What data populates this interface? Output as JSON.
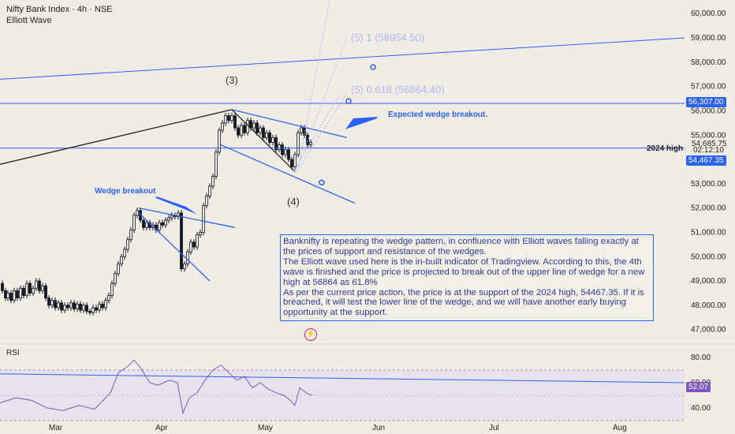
{
  "header": {
    "title": "Nifty Bank Index · 4h · NSE",
    "indicator": "Elliott Wave"
  },
  "annotations": {
    "wave3": "(3)",
    "wave4": "(4)",
    "target1": "(5) 1 (58954.50)",
    "target2": "(5) 0.618 (56864.40)",
    "expected": "Expected wedge breakout.",
    "wedge": "Wedge breakout",
    "high2024": "2024 high"
  },
  "note": {
    "line1": "Banknifty is repeating the wedge pattern, in confluence with Elliott waves falling exactly at the prices of support and resistance of the wedges.",
    "line2": "The Elliott wave used here is the in-built indicator of Tradingview. According to this, the 4th wave is finished and the price is projected to break out of the upper line of wedge for a new high at 56864 as 61.8%",
    "line3": "As per the current price action, the price is at the support of the 2024 high, 54467.35. If it is breached, it will test the lower line of the wedge, and we will have another early buying opportunity at the support."
  },
  "price_tags": {
    "level": "56,307.00",
    "last": "54,685.75",
    "countdown": "02:12:10",
    "support": "54,467.35"
  },
  "rsi": {
    "label": "RSI",
    "value": "52.07"
  },
  "colors": {
    "bg": "#f1ede4",
    "blue": "#2962ff",
    "candle": "#131722",
    "rsi_line": "#7e57c2",
    "rsi_band": "#e4ddef"
  },
  "chart_data": {
    "type": "candlestick",
    "title": "Nifty Bank Index · 4h · NSE",
    "y_ticks": [
      "60,000.00",
      "59,000.00",
      "58,000.00",
      "57,000.00",
      "56,000.00",
      "55,000.00",
      "53,000.00",
      "52,000.00",
      "51,000.00",
      "50,000.00",
      "49,000.00",
      "48,000.00",
      "47,000.00"
    ],
    "x_ticks": [
      "Mar",
      "Apr",
      "May",
      "Jun",
      "Jul",
      "Aug"
    ],
    "ylim": [
      46600,
      60300
    ],
    "rsi_ticks": [
      "80.00",
      "60.00",
      "40.00"
    ],
    "close_path": [
      {
        "x": 0,
        "y": 48900
      },
      {
        "x": 3,
        "y": 48600
      },
      {
        "x": 7,
        "y": 48300
      },
      {
        "x": 10,
        "y": 48500
      },
      {
        "x": 14,
        "y": 48200
      },
      {
        "x": 18,
        "y": 48600
      },
      {
        "x": 22,
        "y": 48300
      },
      {
        "x": 26,
        "y": 48700
      },
      {
        "x": 30,
        "y": 48400
      },
      {
        "x": 34,
        "y": 48900
      },
      {
        "x": 38,
        "y": 48500
      },
      {
        "x": 42,
        "y": 48700
      },
      {
        "x": 46,
        "y": 49000
      },
      {
        "x": 50,
        "y": 48600
      },
      {
        "x": 54,
        "y": 48800
      },
      {
        "x": 58,
        "y": 48300
      },
      {
        "x": 62,
        "y": 48000
      },
      {
        "x": 66,
        "y": 48200
      },
      {
        "x": 70,
        "y": 47900
      },
      {
        "x": 74,
        "y": 48100
      },
      {
        "x": 78,
        "y": 47800
      },
      {
        "x": 82,
        "y": 48000
      },
      {
        "x": 86,
        "y": 47900
      },
      {
        "x": 90,
        "y": 48100
      },
      {
        "x": 94,
        "y": 47850
      },
      {
        "x": 98,
        "y": 48050
      },
      {
        "x": 102,
        "y": 47800
      },
      {
        "x": 106,
        "y": 48000
      },
      {
        "x": 110,
        "y": 47750
      },
      {
        "x": 114,
        "y": 47700
      },
      {
        "x": 118,
        "y": 47900
      },
      {
        "x": 122,
        "y": 47800
      },
      {
        "x": 126,
        "y": 48050
      },
      {
        "x": 130,
        "y": 47900
      },
      {
        "x": 134,
        "y": 48200
      },
      {
        "x": 138,
        "y": 48400
      },
      {
        "x": 142,
        "y": 48900
      },
      {
        "x": 146,
        "y": 49300
      },
      {
        "x": 150,
        "y": 49700
      },
      {
        "x": 154,
        "y": 50000
      },
      {
        "x": 158,
        "y": 50300
      },
      {
        "x": 162,
        "y": 50700
      },
      {
        "x": 166,
        "y": 51100
      },
      {
        "x": 170,
        "y": 51700
      },
      {
        "x": 174,
        "y": 51900
      },
      {
        "x": 178,
        "y": 51500
      },
      {
        "x": 182,
        "y": 51200
      },
      {
        "x": 186,
        "y": 51400
      },
      {
        "x": 190,
        "y": 51200
      },
      {
        "x": 194,
        "y": 51300
      },
      {
        "x": 198,
        "y": 51100
      },
      {
        "x": 202,
        "y": 51400
      },
      {
        "x": 206,
        "y": 51300
      },
      {
        "x": 210,
        "y": 51500
      },
      {
        "x": 214,
        "y": 51600
      },
      {
        "x": 218,
        "y": 51700
      },
      {
        "x": 222,
        "y": 51650
      },
      {
        "x": 226,
        "y": 51800
      },
      {
        "x": 230,
        "y": 49500
      },
      {
        "x": 234,
        "y": 49700
      },
      {
        "x": 238,
        "y": 50200
      },
      {
        "x": 242,
        "y": 50600
      },
      {
        "x": 246,
        "y": 50400
      },
      {
        "x": 250,
        "y": 50900
      },
      {
        "x": 254,
        "y": 51000
      },
      {
        "x": 258,
        "y": 52100
      },
      {
        "x": 262,
        "y": 52500
      },
      {
        "x": 266,
        "y": 52900
      },
      {
        "x": 270,
        "y": 53300
      },
      {
        "x": 274,
        "y": 54300
      },
      {
        "x": 278,
        "y": 55200
      },
      {
        "x": 282,
        "y": 55500
      },
      {
        "x": 286,
        "y": 55800
      },
      {
        "x": 290,
        "y": 55600
      },
      {
        "x": 294,
        "y": 55800
      },
      {
        "x": 298,
        "y": 55300
      },
      {
        "x": 302,
        "y": 55000
      },
      {
        "x": 306,
        "y": 55400
      },
      {
        "x": 310,
        "y": 55100
      },
      {
        "x": 314,
        "y": 55600
      },
      {
        "x": 318,
        "y": 55300
      },
      {
        "x": 322,
        "y": 55500
      },
      {
        "x": 326,
        "y": 55100
      },
      {
        "x": 330,
        "y": 55300
      },
      {
        "x": 334,
        "y": 54900
      },
      {
        "x": 338,
        "y": 55100
      },
      {
        "x": 342,
        "y": 54700
      },
      {
        "x": 346,
        "y": 54900
      },
      {
        "x": 350,
        "y": 54400
      },
      {
        "x": 354,
        "y": 54600
      },
      {
        "x": 358,
        "y": 54200
      },
      {
        "x": 362,
        "y": 54400
      },
      {
        "x": 366,
        "y": 54000
      },
      {
        "x": 370,
        "y": 53700
      },
      {
        "x": 374,
        "y": 54200
      },
      {
        "x": 378,
        "y": 55100
      },
      {
        "x": 382,
        "y": 55300
      },
      {
        "x": 386,
        "y": 55000
      },
      {
        "x": 390,
        "y": 54600
      },
      {
        "x": 394,
        "y": 54700
      }
    ],
    "levels": [
      {
        "name": "level",
        "y": 56307
      },
      {
        "name": "support",
        "y": 54467.35
      }
    ]
  }
}
